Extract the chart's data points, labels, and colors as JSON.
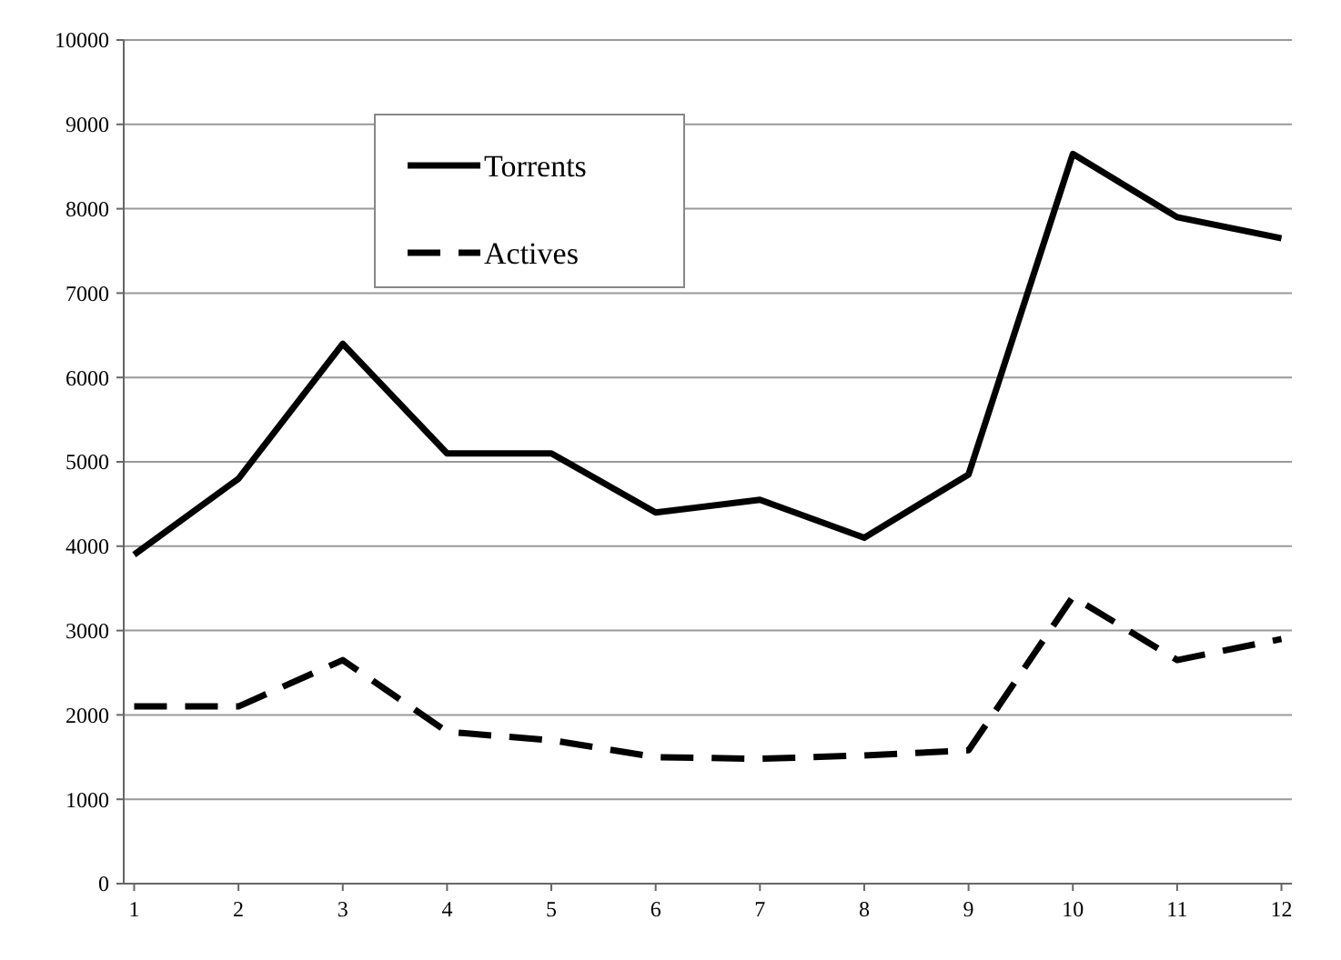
{
  "chart_data": {
    "type": "line",
    "x": [
      1,
      2,
      3,
      4,
      5,
      6,
      7,
      8,
      9,
      10,
      11,
      12
    ],
    "series": [
      {
        "name": "Torrents",
        "color": "#000000",
        "line_style": "solid",
        "values": [
          3900,
          4800,
          6400,
          5100,
          5100,
          4400,
          4550,
          4100,
          4850,
          8650,
          7900,
          7650
        ]
      },
      {
        "name": "Actives",
        "color": "#000000",
        "line_style": "dashed",
        "values": [
          2100,
          2100,
          2650,
          1800,
          1700,
          1500,
          1480,
          1520,
          1580,
          3400,
          2650,
          2900
        ]
      }
    ],
    "xlim": [
      0.9,
      12.1
    ],
    "xticks": [
      1,
      2,
      3,
      4,
      5,
      6,
      7,
      8,
      9,
      10,
      11,
      12
    ],
    "ylim": [
      0,
      10000
    ],
    "yticks": [
      0,
      1000,
      2000,
      3000,
      4000,
      5000,
      6000,
      7000,
      8000,
      9000,
      10000
    ],
    "grid": "y",
    "legend": "top left",
    "marker": "none"
  }
}
